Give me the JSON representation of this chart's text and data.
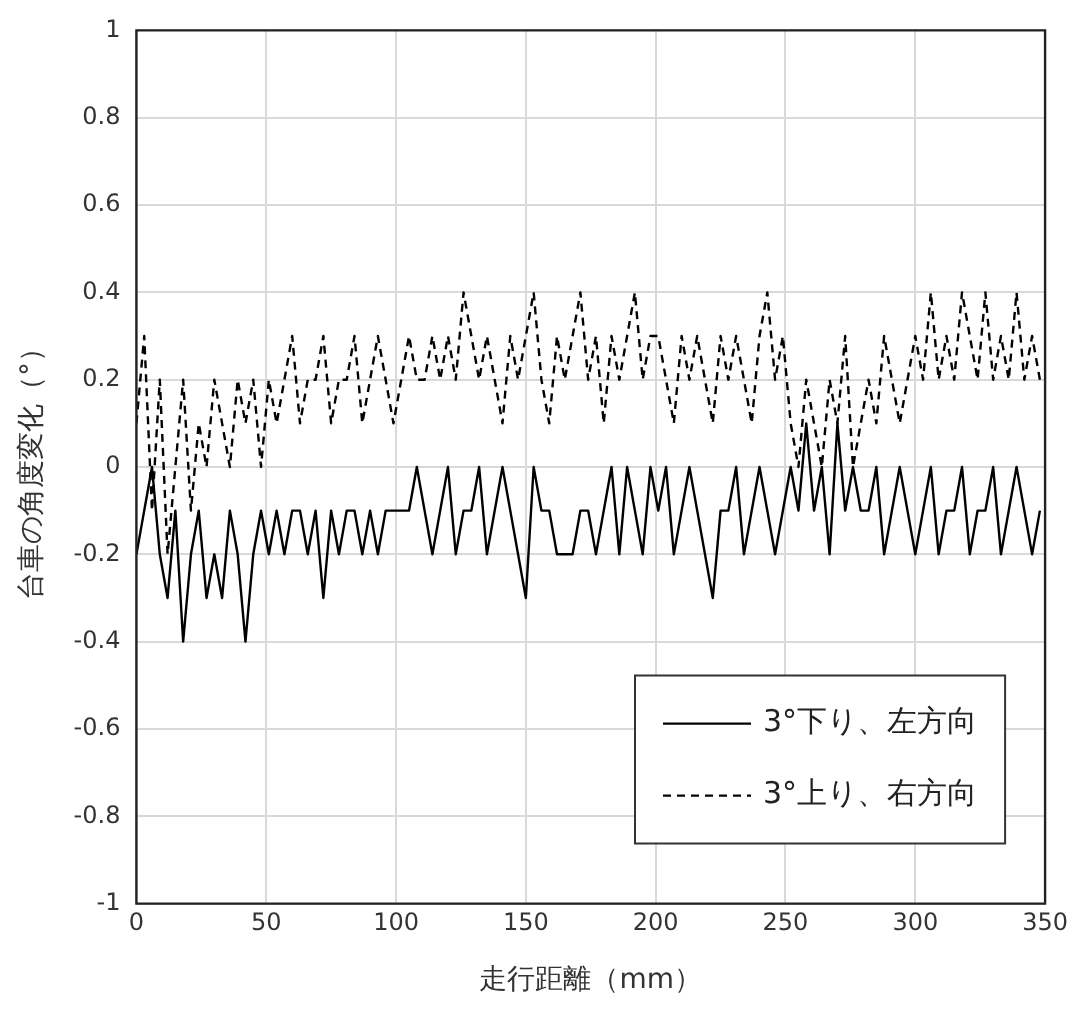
{
  "chart_data": {
    "type": "line",
    "xlabel": "走行距離（mm）",
    "ylabel": "台車の角度変化（°）",
    "x": [
      0,
      3,
      6,
      9,
      12,
      15,
      18,
      21,
      24,
      27,
      30,
      33,
      36,
      39,
      42,
      45,
      48,
      51,
      54,
      57,
      60,
      63,
      66,
      69,
      72,
      75,
      78,
      81,
      84,
      87,
      90,
      93,
      96,
      99,
      102,
      105,
      108,
      111,
      114,
      117,
      120,
      123,
      126,
      129,
      132,
      135,
      138,
      141,
      144,
      147,
      150,
      153,
      156,
      159,
      162,
      165,
      168,
      171,
      174,
      177,
      180,
      183,
      186,
      189,
      192,
      195,
      198,
      201,
      204,
      207,
      210,
      213,
      216,
      219,
      222,
      225,
      228,
      231,
      234,
      237,
      240,
      243,
      246,
      249,
      252,
      255,
      258,
      261,
      264,
      267,
      270,
      273,
      276,
      279,
      282,
      285,
      288,
      291,
      294,
      297,
      300,
      303,
      306,
      309,
      312,
      315,
      318,
      321,
      324,
      327,
      330,
      333,
      336,
      339,
      342,
      345,
      348
    ],
    "series": [
      {
        "name": "3°下り、左方向",
        "color": "#000000",
        "line_style": "solid",
        "values": [
          -0.2,
          -0.1,
          0,
          -0.2,
          -0.3,
          -0.1,
          -0.4,
          -0.2,
          -0.1,
          -0.3,
          -0.2,
          -0.3,
          -0.1,
          -0.2,
          -0.4,
          -0.2,
          -0.1,
          -0.2,
          -0.1,
          -0.2,
          -0.1,
          -0.1,
          -0.2,
          -0.1,
          -0.3,
          -0.1,
          -0.2,
          -0.1,
          -0.1,
          -0.2,
          -0.1,
          -0.2,
          -0.1,
          -0.1,
          -0.1,
          -0.1,
          0,
          -0.1,
          -0.2,
          -0.1,
          0,
          -0.2,
          -0.1,
          -0.1,
          0,
          -0.2,
          -0.1,
          0,
          -0.1,
          -0.2,
          -0.3,
          0,
          -0.1,
          -0.1,
          -0.2,
          -0.2,
          -0.2,
          -0.1,
          -0.1,
          -0.2,
          -0.1,
          0,
          -0.2,
          0,
          -0.1,
          -0.2,
          0,
          -0.1,
          0,
          -0.2,
          -0.1,
          0,
          -0.1,
          -0.2,
          -0.3,
          -0.1,
          -0.1,
          0,
          -0.2,
          -0.1,
          0,
          -0.1,
          -0.2,
          -0.1,
          0,
          -0.1,
          0.1,
          -0.1,
          0,
          -0.2,
          0.1,
          -0.1,
          0,
          -0.1,
          -0.1,
          0,
          -0.2,
          -0.1,
          0,
          -0.1,
          -0.2,
          -0.1,
          0,
          -0.2,
          -0.1,
          -0.1,
          0,
          -0.2,
          -0.1,
          -0.1,
          0,
          -0.2,
          -0.1,
          0,
          -0.1,
          -0.2,
          -0.1
        ]
      },
      {
        "name": "3°上り、右方向",
        "color": "#000000",
        "line_style": "dashed",
        "values": [
          0.1,
          0.3,
          -0.1,
          0.2,
          -0.2,
          0,
          0.2,
          -0.1,
          0.1,
          0,
          0.2,
          0.1,
          0,
          0.2,
          0.1,
          0.2,
          0,
          0.2,
          0.1,
          0.2,
          0.3,
          0.1,
          0.2,
          0.2,
          0.3,
          0.1,
          0.2,
          0.2,
          0.3,
          0.1,
          0.2,
          0.3,
          0.2,
          0.1,
          0.2,
          0.3,
          0.2,
          0.2,
          0.3,
          0.2,
          0.3,
          0.2,
          0.4,
          0.3,
          0.2,
          0.3,
          0.2,
          0.1,
          0.3,
          0.2,
          0.3,
          0.4,
          0.2,
          0.1,
          0.3,
          0.2,
          0.3,
          0.4,
          0.2,
          0.3,
          0.1,
          0.3,
          0.2,
          0.3,
          0.4,
          0.2,
          0.3,
          0.3,
          0.2,
          0.1,
          0.3,
          0.2,
          0.3,
          0.2,
          0.1,
          0.3,
          0.2,
          0.3,
          0.2,
          0.1,
          0.3,
          0.4,
          0.2,
          0.3,
          0.1,
          0,
          0.2,
          0.1,
          0,
          0.2,
          0.1,
          0.3,
          0,
          0.1,
          0.2,
          0.1,
          0.3,
          0.2,
          0.1,
          0.2,
          0.3,
          0.2,
          0.4,
          0.2,
          0.3,
          0.2,
          0.4,
          0.3,
          0.2,
          0.4,
          0.2,
          0.3,
          0.2,
          0.4,
          0.2,
          0.3,
          0.2
        ]
      }
    ],
    "xlim": [
      0,
      350
    ],
    "xticks": [
      0,
      50,
      100,
      150,
      200,
      250,
      300,
      350
    ],
    "ylim": [
      -1,
      1
    ],
    "yticks": [
      {
        "value": -1,
        "label": "-1"
      },
      {
        "value": -0.8,
        "label": "-0.8"
      },
      {
        "value": -0.6,
        "label": "-0.6"
      },
      {
        "value": -0.4,
        "label": "-0.4"
      },
      {
        "value": -0.2,
        "label": "-0.2"
      },
      0,
      0.2,
      0.4,
      0.6,
      0.8,
      1
    ],
    "grid": true,
    "legend": "bottom right",
    "marker": "none"
  }
}
